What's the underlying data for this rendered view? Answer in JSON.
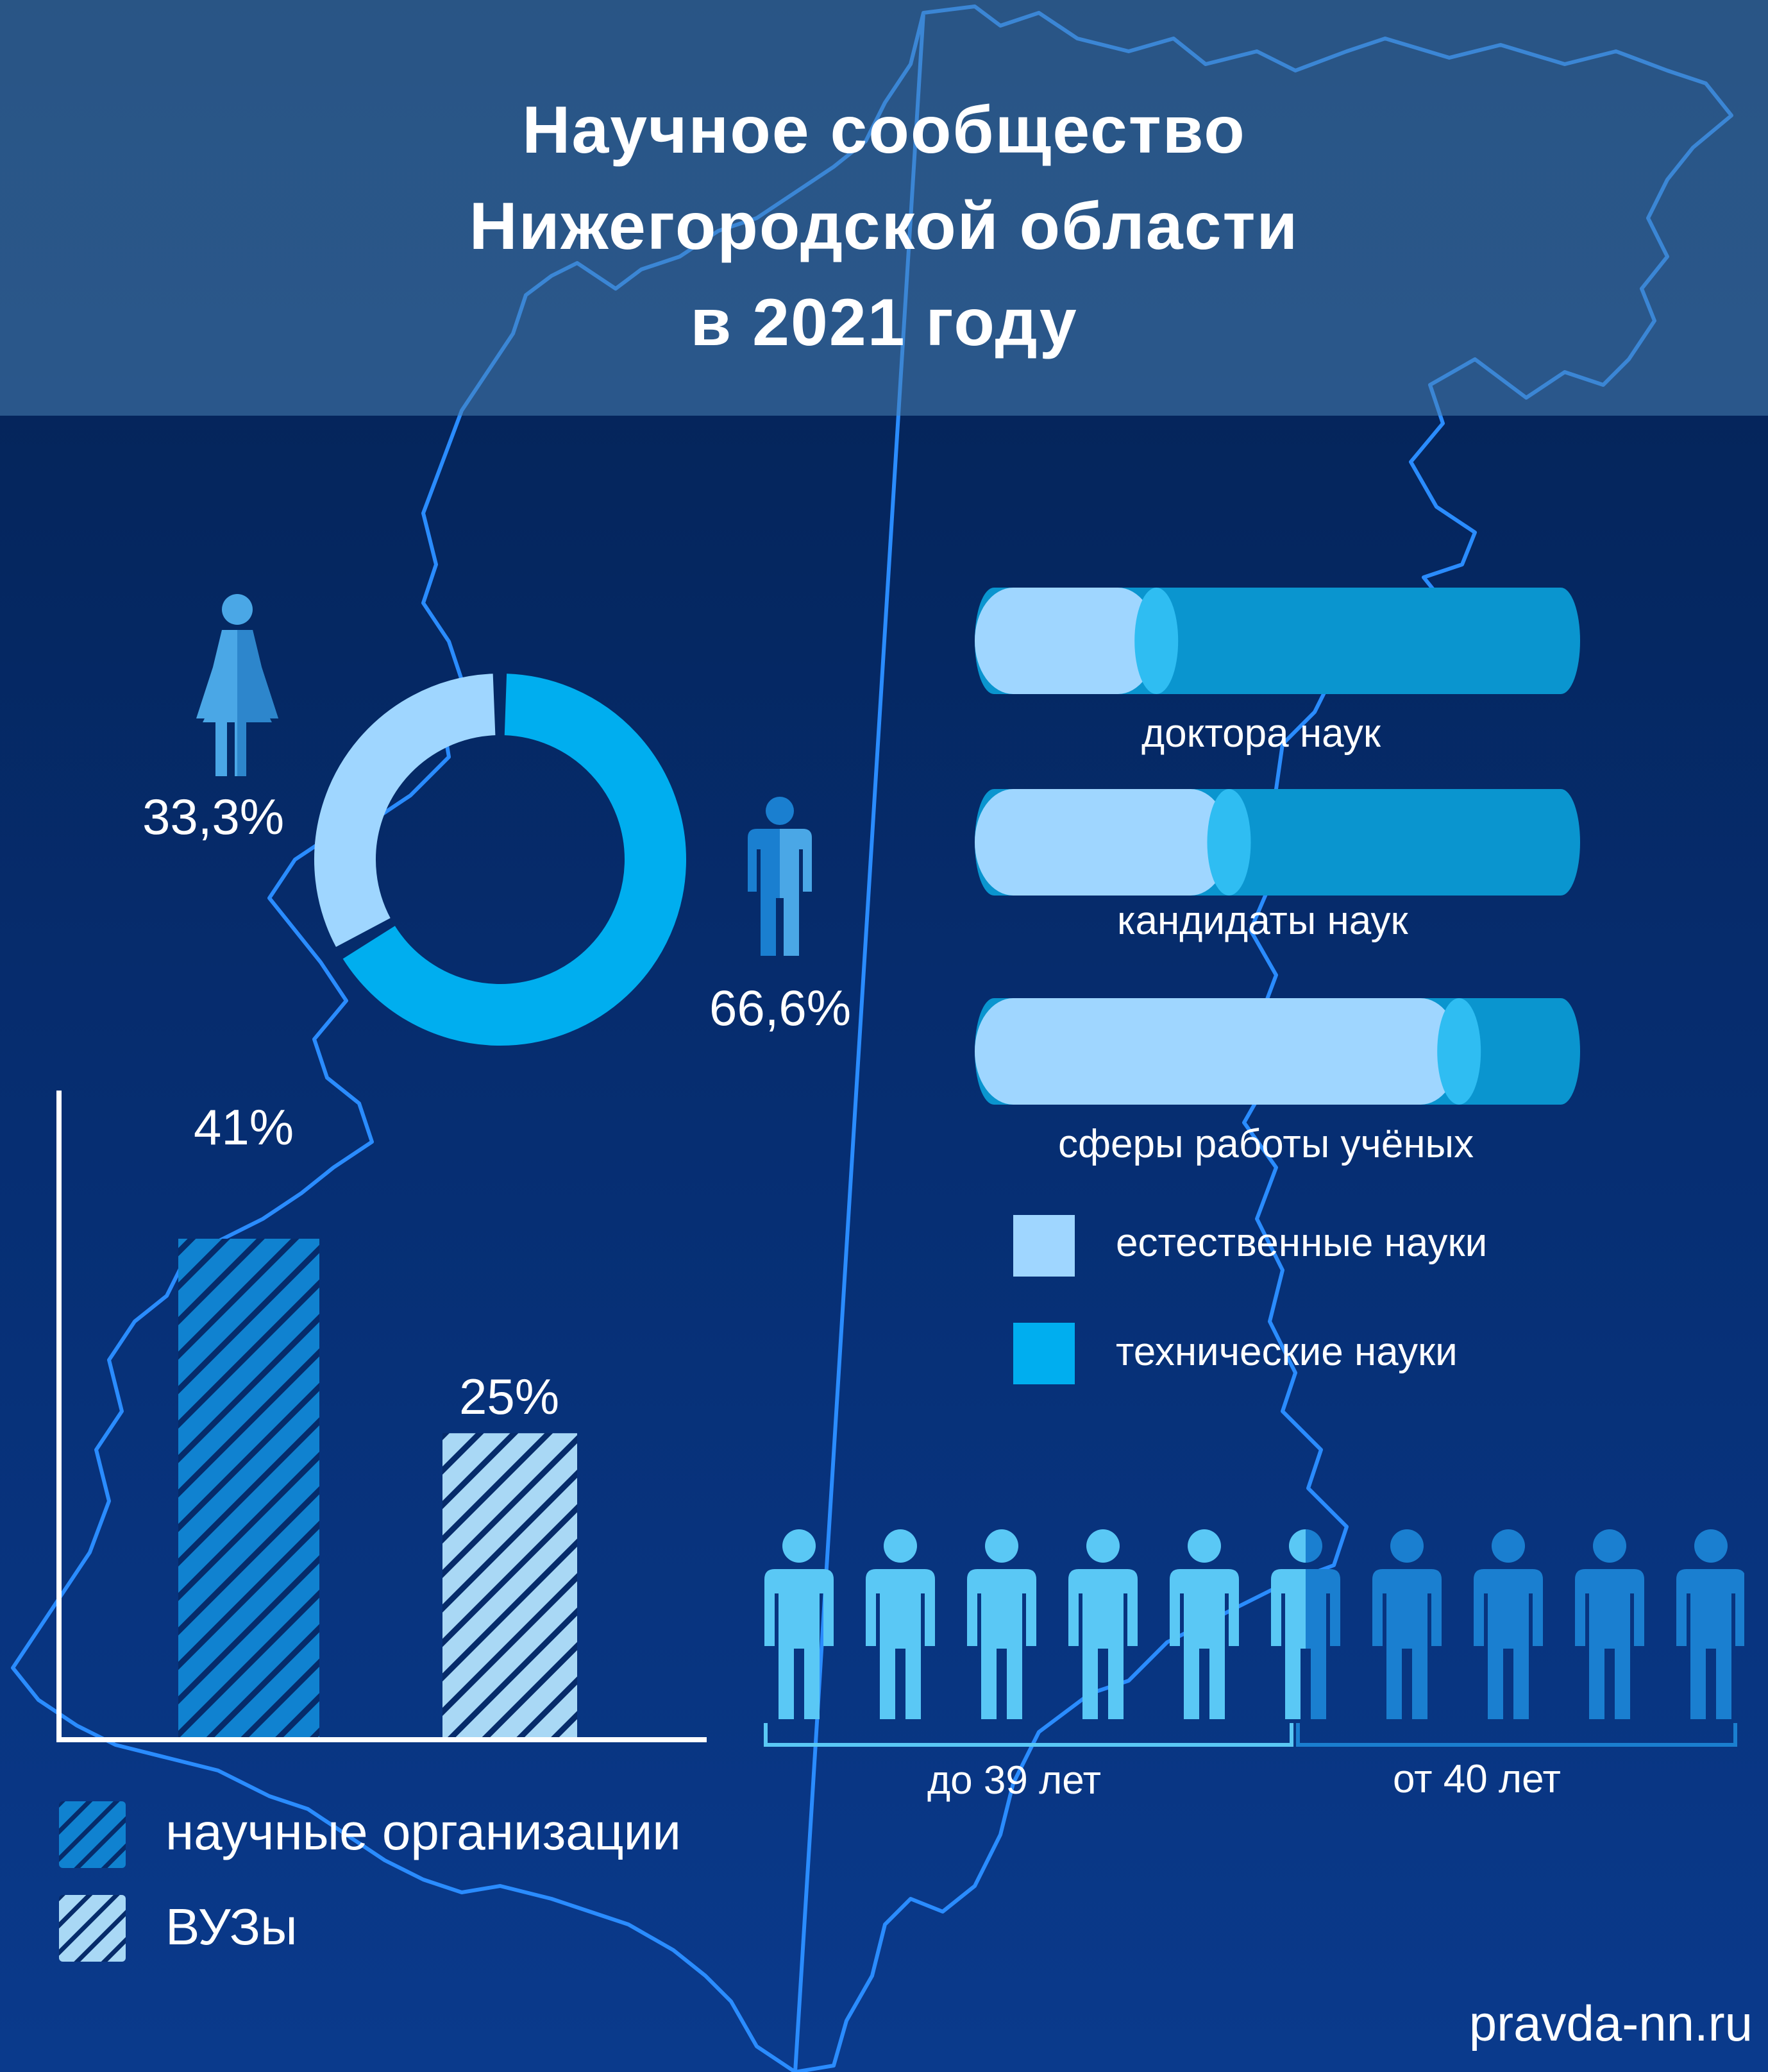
{
  "title": {
    "line1": "Научное сообщество",
    "line2": "Нижегородской области",
    "line3": "в 2021 году"
  },
  "colors": {
    "light": "#9fd6ff",
    "bright": "#00aeef",
    "mid": "#0a95cf",
    "dark_bar": "#1082d0",
    "map_line": "#2a8cff"
  },
  "gender": {
    "female_pct": "33,3%",
    "male_pct": "66,6%",
    "female_icon": "female-person-icon",
    "male_icon": "male-person-icon"
  },
  "science_bars": {
    "rows": [
      {
        "label": "доктора наук",
        "natural_share": 0.3
      },
      {
        "label": "кандидаты наук",
        "natural_share": 0.42
      },
      {
        "label": "сферы работы учёных",
        "natural_share": 0.8
      }
    ],
    "legend": [
      "естественные науки",
      "технические науки"
    ]
  },
  "org_bars": {
    "values": [
      "41%",
      "25%"
    ],
    "legend": [
      "научные организации",
      "ВУЗы"
    ]
  },
  "age": {
    "groups": [
      "до 39 лет",
      "от 40 лет"
    ],
    "young_share": 0.55,
    "person_icon": "person-icon"
  },
  "chart_data": [
    {
      "type": "pie",
      "categories": [
        "33,3%",
        "66,6%"
      ],
      "values": [
        33.3,
        66.6
      ]
    },
    {
      "type": "bar",
      "orientation": "horizontal",
      "stacked": true,
      "categories": [
        "доктора наук",
        "кандидаты наук",
        "сферы работы учёных"
      ],
      "series": [
        {
          "name": "естественные науки",
          "values": [
            30,
            42,
            80
          ]
        },
        {
          "name": "технические науки",
          "values": [
            70,
            58,
            20
          ]
        }
      ]
    },
    {
      "type": "bar",
      "categories": [
        "научные организации",
        "ВУЗы"
      ],
      "values": [
        41,
        25
      ],
      "ylim": [
        0,
        50
      ]
    }
  ],
  "site": "pravda-nn.ru"
}
